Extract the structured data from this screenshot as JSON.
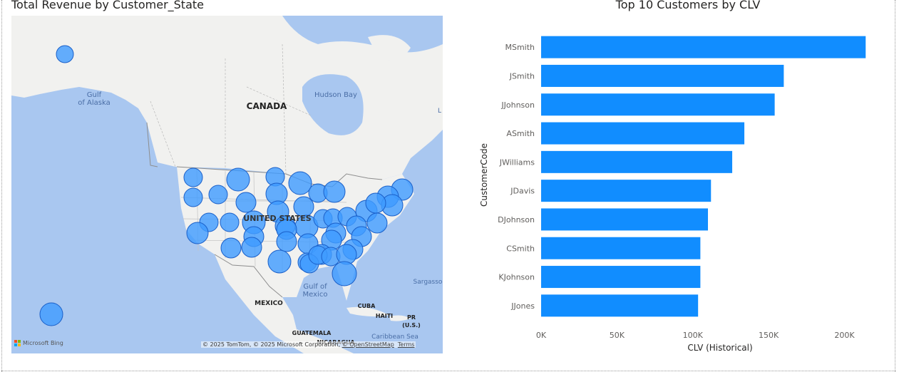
{
  "map": {
    "title": "Total Revenue by Customer_State",
    "labels": {
      "gulf_alaska": "Gulf\nof Alaska",
      "canada": "CANADA",
      "hudson_bay": "Hudson Bay",
      "united_states": "UNITED STATES",
      "gulf_mexico": "Gulf of\nMexico",
      "mexico": "MEXICO",
      "cuba": "CUBA",
      "haiti": "HAITI",
      "pr": "PR\n(U.S.)",
      "sargasso": "Sargasso",
      "guatemala": "GUATEMALA",
      "nicaragua": "NICARAGUA",
      "caribbean": "Caribbean Sea",
      "edge_l": "L"
    },
    "attribution_text": "© 2025 TomTom, © 2025 Microsoft Corporation, ",
    "attribution_link": "© OpenStreetMap",
    "terms": "Terms",
    "bing_logo": "Microsoft Bing",
    "bubble_color": "#3f9bff",
    "bubble_stroke": "#1a5fc8"
  },
  "chart_data": {
    "type": "bar",
    "orientation": "horizontal",
    "title": "Top 10 Customers by CLV",
    "ylabel": "CustomerCode",
    "xlabel": "CLV (Historical)",
    "categories": [
      "MSmith",
      "JSmith",
      "JJohnson",
      "ASmith",
      "JWilliams",
      "JDavis",
      "DJohnson",
      "CSmith",
      "KJohnson",
      "JJones"
    ],
    "values": [
      214000,
      160000,
      154000,
      134000,
      126000,
      112000,
      110000,
      105000,
      105000,
      103500
    ],
    "xlim": [
      0,
      220000
    ],
    "xticks": [
      0,
      50000,
      100000,
      150000,
      200000
    ],
    "xtick_labels": [
      "0K",
      "50K",
      "100K",
      "150K",
      "200K"
    ],
    "grid": false,
    "color": "#118dff"
  }
}
